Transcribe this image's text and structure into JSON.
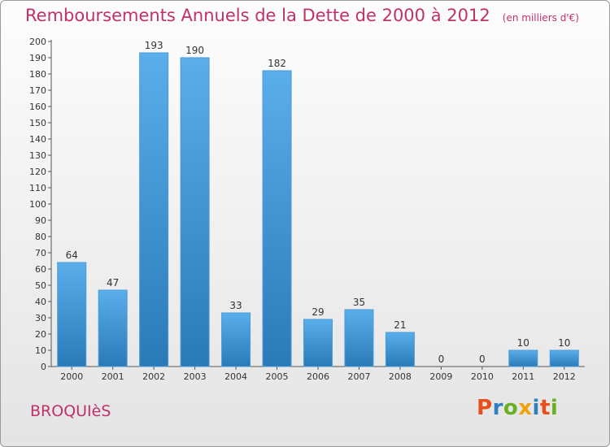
{
  "title": "Remboursements Annuels de la Dette de 2000 à 2012",
  "unit": "(en milliers d'€)",
  "commune": "BROQUIèS",
  "logo": {
    "letters": [
      "P",
      "r",
      "o",
      "x",
      "i",
      "t",
      "i"
    ],
    "colors": [
      "#e94e1b",
      "#2f7fc1",
      "#6ab023",
      "#f0a30a",
      "#2f7fc1",
      "#e94e1b",
      "#6ab023"
    ]
  },
  "colors": {
    "accent": "#c0306a",
    "bar_light": "#5aaeea",
    "bar_dark": "#2a7ab8"
  },
  "chart_data": {
    "type": "bar",
    "categories": [
      "2000",
      "2001",
      "2002",
      "2003",
      "2004",
      "2005",
      "2006",
      "2007",
      "2008",
      "2009",
      "2010",
      "2011",
      "2012"
    ],
    "values": [
      64,
      47,
      193,
      190,
      33,
      182,
      29,
      35,
      21,
      0,
      0,
      10,
      10
    ],
    "ylim": [
      0,
      200
    ],
    "yticks": [
      0,
      10,
      20,
      30,
      40,
      50,
      60,
      70,
      80,
      90,
      100,
      110,
      120,
      130,
      140,
      150,
      160,
      170,
      180,
      190,
      200
    ],
    "grid": false,
    "legend": "none"
  }
}
